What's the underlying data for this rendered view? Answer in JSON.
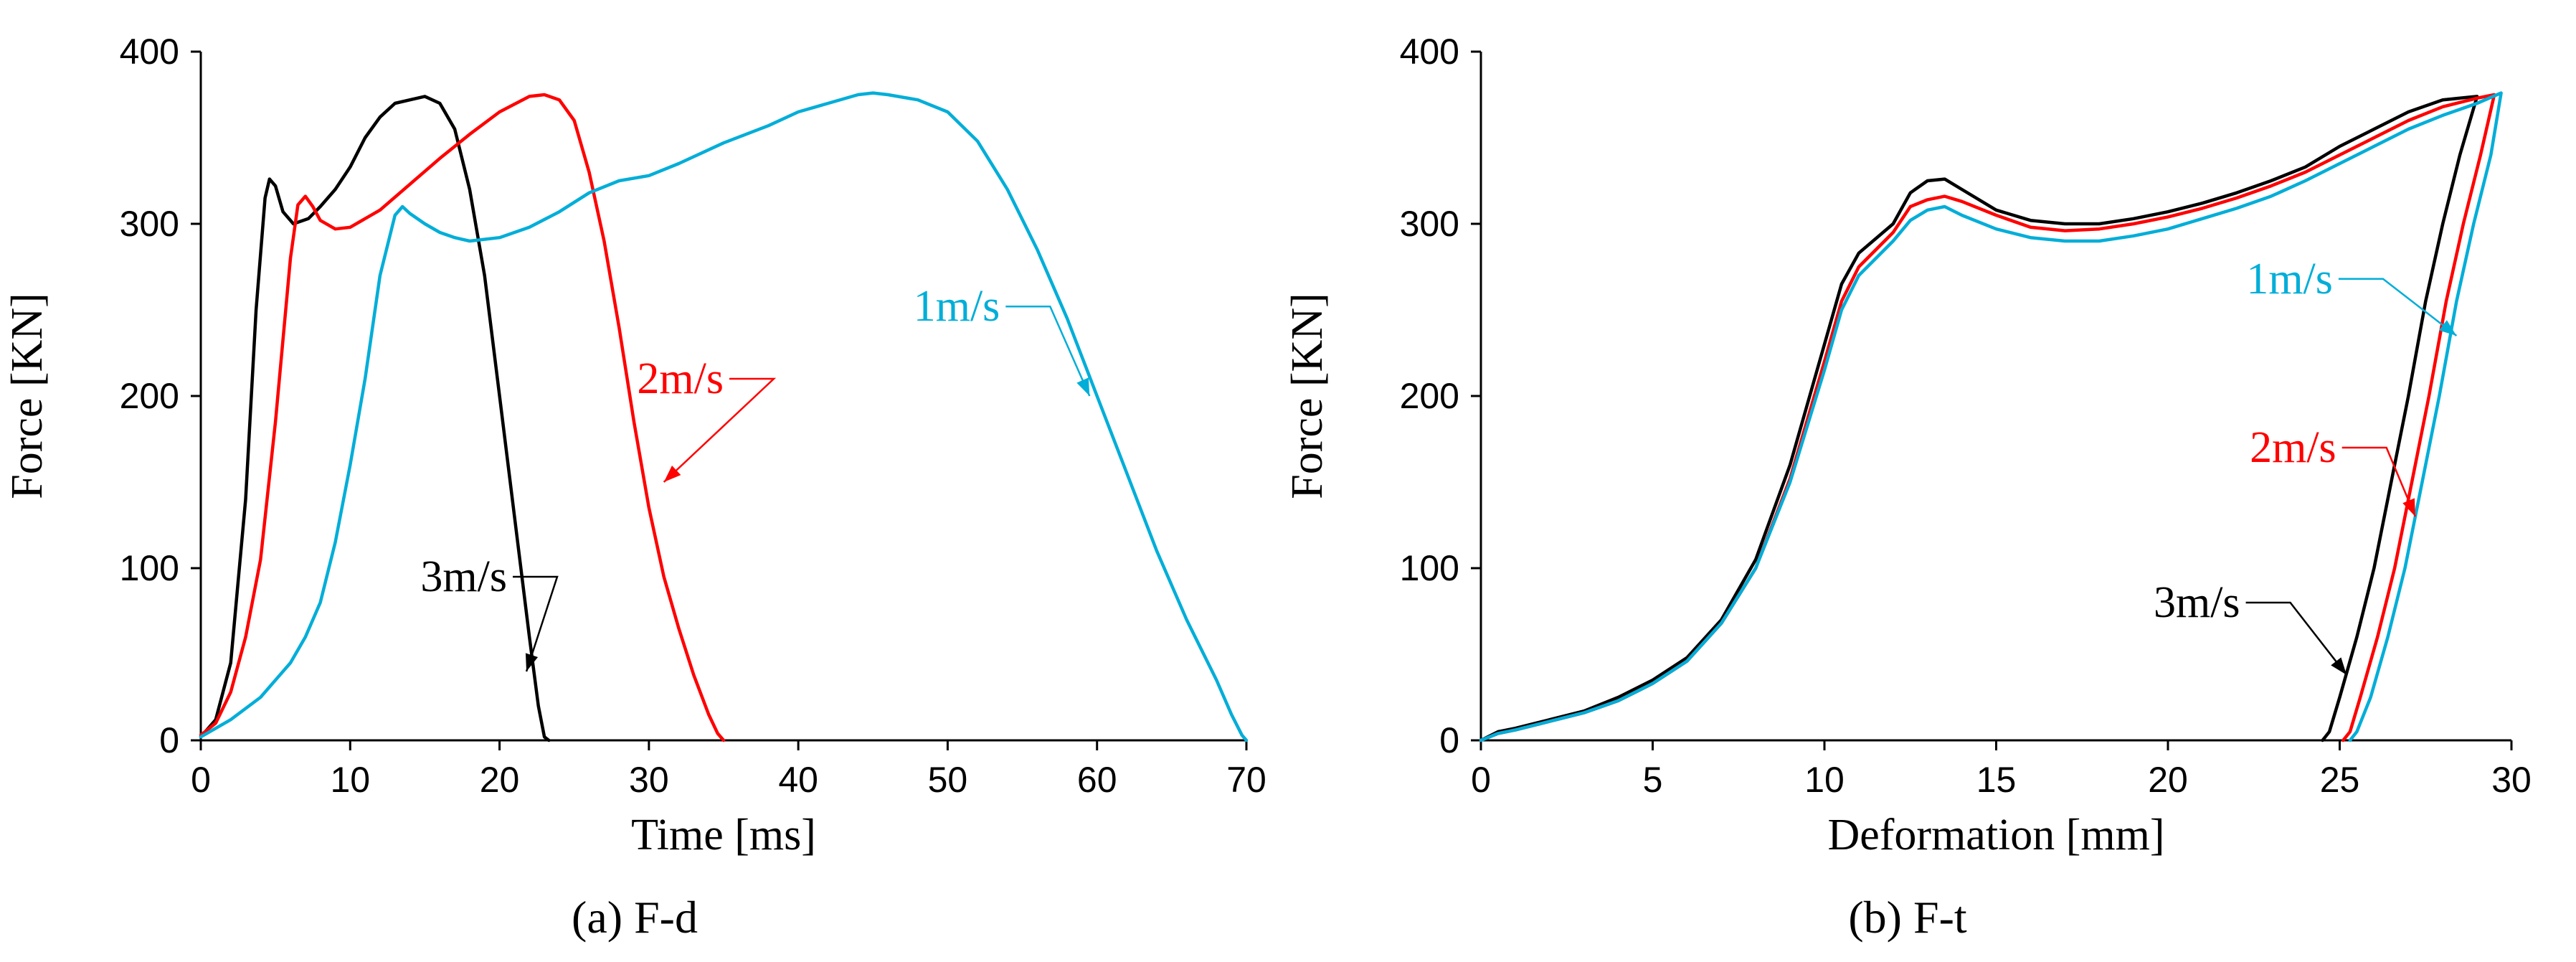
{
  "chart_data": [
    {
      "type": "line",
      "caption": "(a) F-d",
      "xlabel": "Time [ms]",
      "ylabel": "Force [KN]",
      "xlim": [
        0,
        70
      ],
      "ylim": [
        0,
        400
      ],
      "xticks": [
        "0",
        "10",
        "20",
        "30",
        "40",
        "50",
        "60",
        "70"
      ],
      "yticks": [
        "0",
        "100",
        "200",
        "300",
        "400"
      ],
      "grid": false,
      "series": [
        {
          "name": "3m/s",
          "label": "3m/s",
          "color": "#000000",
          "points": [
            [
              0,
              2
            ],
            [
              1,
              12
            ],
            [
              2,
              45
            ],
            [
              3,
              140
            ],
            [
              3.7,
              250
            ],
            [
              4.3,
              315
            ],
            [
              4.6,
              326
            ],
            [
              5.0,
              322
            ],
            [
              5.5,
              307
            ],
            [
              6.2,
              300
            ],
            [
              7.2,
              303
            ],
            [
              8,
              310
            ],
            [
              9,
              320
            ],
            [
              10,
              333
            ],
            [
              11,
              350
            ],
            [
              12,
              362
            ],
            [
              13,
              370
            ],
            [
              14,
              372
            ],
            [
              15,
              374
            ],
            [
              16,
              370
            ],
            [
              17,
              355
            ],
            [
              18,
              320
            ],
            [
              19,
              270
            ],
            [
              20,
              200
            ],
            [
              21,
              130
            ],
            [
              22,
              60
            ],
            [
              22.6,
              20
            ],
            [
              23,
              2
            ],
            [
              23.3,
              0
            ]
          ],
          "annotation": {
            "tip": [
              21.8,
              40
            ],
            "label_pos": [
              20.5,
              95
            ]
          }
        },
        {
          "name": "2m/s",
          "label": "2m/s",
          "color": "#ff0000",
          "points": [
            [
              0,
              3
            ],
            [
              1,
              10
            ],
            [
              2,
              28
            ],
            [
              3,
              60
            ],
            [
              4,
              105
            ],
            [
              5,
              185
            ],
            [
              6,
              280
            ],
            [
              6.5,
              311
            ],
            [
              7,
              316
            ],
            [
              7.5,
              310
            ],
            [
              8,
              302
            ],
            [
              9,
              297
            ],
            [
              10,
              298
            ],
            [
              12,
              308
            ],
            [
              14,
              323
            ],
            [
              16,
              338
            ],
            [
              18,
              352
            ],
            [
              20,
              365
            ],
            [
              22,
              374
            ],
            [
              23,
              375
            ],
            [
              24,
              372
            ],
            [
              25,
              360
            ],
            [
              26,
              330
            ],
            [
              27,
              290
            ],
            [
              28,
              240
            ],
            [
              29,
              185
            ],
            [
              30,
              135
            ],
            [
              31,
              95
            ],
            [
              32,
              65
            ],
            [
              33,
              38
            ],
            [
              34,
              15
            ],
            [
              34.6,
              4
            ],
            [
              35,
              0
            ]
          ],
          "annotation": {
            "tip": [
              31,
              150
            ],
            "label_pos": [
              35,
              210
            ]
          }
        },
        {
          "name": "1m/s",
          "label": "1m/s",
          "color": "#00aed8",
          "points": [
            [
              0,
              2
            ],
            [
              2,
              12
            ],
            [
              4,
              25
            ],
            [
              6,
              45
            ],
            [
              7,
              60
            ],
            [
              8,
              80
            ],
            [
              9,
              115
            ],
            [
              10,
              160
            ],
            [
              11,
              210
            ],
            [
              12,
              270
            ],
            [
              13,
              305
            ],
            [
              13.5,
              310
            ],
            [
              14,
              306
            ],
            [
              15,
              300
            ],
            [
              16,
              295
            ],
            [
              17,
              292
            ],
            [
              18,
              290
            ],
            [
              20,
              292
            ],
            [
              22,
              298
            ],
            [
              24,
              307
            ],
            [
              26,
              318
            ],
            [
              28,
              325
            ],
            [
              30,
              328
            ],
            [
              32,
              335
            ],
            [
              35,
              347
            ],
            [
              38,
              357
            ],
            [
              40,
              365
            ],
            [
              42,
              370
            ],
            [
              44,
              375
            ],
            [
              45,
              376
            ],
            [
              46,
              375
            ],
            [
              48,
              372
            ],
            [
              50,
              365
            ],
            [
              52,
              348
            ],
            [
              54,
              320
            ],
            [
              56,
              285
            ],
            [
              58,
              245
            ],
            [
              60,
              200
            ],
            [
              62,
              155
            ],
            [
              64,
              110
            ],
            [
              66,
              70
            ],
            [
              68,
              35
            ],
            [
              69,
              15
            ],
            [
              69.7,
              3
            ],
            [
              70,
              0
            ]
          ],
          "annotation": {
            "tip": [
              59.5,
              200
            ],
            "label_pos": [
              53.5,
              252
            ]
          }
        }
      ]
    },
    {
      "type": "line",
      "caption": "(b) F-t",
      "xlabel": "Deformation [mm]",
      "ylabel": "Force [KN]",
      "xlim": [
        0,
        30
      ],
      "ylim": [
        0,
        400
      ],
      "xticks": [
        "0",
        "5",
        "10",
        "15",
        "20",
        "25",
        "30"
      ],
      "yticks": [
        "0",
        "100",
        "200",
        "300",
        "400"
      ],
      "grid": false,
      "series": [
        {
          "name": "3m/s",
          "label": "3m/s",
          "color": "#000000",
          "points": [
            [
              0,
              0
            ],
            [
              0.5,
              5
            ],
            [
              1,
              7
            ],
            [
              2,
              12
            ],
            [
              3,
              17
            ],
            [
              4,
              25
            ],
            [
              5,
              35
            ],
            [
              6,
              48
            ],
            [
              7,
              70
            ],
            [
              8,
              105
            ],
            [
              9,
              160
            ],
            [
              10,
              230
            ],
            [
              10.5,
              265
            ],
            [
              11,
              283
            ],
            [
              12,
              300
            ],
            [
              12.5,
              318
            ],
            [
              13,
              325
            ],
            [
              13.5,
              326
            ],
            [
              14,
              320
            ],
            [
              15,
              308
            ],
            [
              16,
              302
            ],
            [
              17,
              300
            ],
            [
              18,
              300
            ],
            [
              19,
              303
            ],
            [
              20,
              307
            ],
            [
              21,
              312
            ],
            [
              22,
              318
            ],
            [
              23,
              325
            ],
            [
              24,
              333
            ],
            [
              25,
              345
            ],
            [
              26,
              355
            ],
            [
              27,
              365
            ],
            [
              28,
              372
            ],
            [
              29,
              374
            ],
            [
              28.5,
              340
            ],
            [
              28,
              300
            ],
            [
              27.5,
              255
            ],
            [
              27,
              200
            ],
            [
              26.5,
              150
            ],
            [
              26,
              100
            ],
            [
              25.5,
              60
            ],
            [
              25,
              25
            ],
            [
              24.7,
              5
            ],
            [
              24.5,
              0
            ]
          ],
          "annotation": {
            "tip": [
              25.2,
              38
            ],
            "label_pos": [
              22.1,
              80
            ]
          }
        },
        {
          "name": "2m/s",
          "label": "2m/s",
          "color": "#ff0000",
          "points": [
            [
              0,
              0
            ],
            [
              0.5,
              4
            ],
            [
              1,
              6
            ],
            [
              2,
              11
            ],
            [
              3,
              16
            ],
            [
              4,
              23
            ],
            [
              5,
              33
            ],
            [
              6,
              46
            ],
            [
              7,
              68
            ],
            [
              8,
              100
            ],
            [
              9,
              152
            ],
            [
              10,
              220
            ],
            [
              10.5,
              255
            ],
            [
              11,
              275
            ],
            [
              12,
              295
            ],
            [
              12.5,
              310
            ],
            [
              13,
              314
            ],
            [
              13.5,
              316
            ],
            [
              14,
              313
            ],
            [
              15,
              305
            ],
            [
              16,
              298
            ],
            [
              17,
              296
            ],
            [
              18,
              297
            ],
            [
              19,
              300
            ],
            [
              20,
              304
            ],
            [
              21,
              309
            ],
            [
              22,
              315
            ],
            [
              23,
              322
            ],
            [
              24,
              330
            ],
            [
              25,
              340
            ],
            [
              26,
              350
            ],
            [
              27,
              360
            ],
            [
              28,
              368
            ],
            [
              29,
              373
            ],
            [
              29.5,
              375
            ],
            [
              29.1,
              340
            ],
            [
              28.6,
              300
            ],
            [
              28.1,
              255
            ],
            [
              27.6,
              200
            ],
            [
              27.1,
              150
            ],
            [
              26.6,
              100
            ],
            [
              26.1,
              60
            ],
            [
              25.6,
              25
            ],
            [
              25.3,
              5
            ],
            [
              25.1,
              0
            ]
          ],
          "annotation": {
            "tip": [
              27.2,
              130
            ],
            "label_pos": [
              24.9,
              170
            ]
          }
        },
        {
          "name": "1m/s",
          "label": "1m/s",
          "color": "#00aed8",
          "points": [
            [
              0,
              0
            ],
            [
              0.5,
              4
            ],
            [
              1,
              6
            ],
            [
              2,
              11
            ],
            [
              3,
              16
            ],
            [
              4,
              23
            ],
            [
              5,
              33
            ],
            [
              6,
              46
            ],
            [
              7,
              68
            ],
            [
              8,
              100
            ],
            [
              9,
              150
            ],
            [
              10,
              215
            ],
            [
              10.5,
              250
            ],
            [
              11,
              270
            ],
            [
              12,
              290
            ],
            [
              12.5,
              302
            ],
            [
              13,
              308
            ],
            [
              13.5,
              310
            ],
            [
              14,
              305
            ],
            [
              15,
              297
            ],
            [
              16,
              292
            ],
            [
              17,
              290
            ],
            [
              18,
              290
            ],
            [
              19,
              293
            ],
            [
              20,
              297
            ],
            [
              21,
              303
            ],
            [
              22,
              309
            ],
            [
              23,
              316
            ],
            [
              24,
              325
            ],
            [
              25,
              335
            ],
            [
              26,
              345
            ],
            [
              27,
              355
            ],
            [
              28,
              363
            ],
            [
              29,
              370
            ],
            [
              29.7,
              376
            ],
            [
              29.4,
              340
            ],
            [
              28.9,
              300
            ],
            [
              28.4,
              255
            ],
            [
              27.9,
              200
            ],
            [
              27.4,
              150
            ],
            [
              26.9,
              100
            ],
            [
              26.4,
              60
            ],
            [
              25.9,
              25
            ],
            [
              25.5,
              5
            ],
            [
              25.3,
              0
            ]
          ],
          "annotation": {
            "tip": [
              28.4,
              235
            ],
            "label_pos": [
              24.8,
              268
            ]
          }
        }
      ]
    }
  ]
}
